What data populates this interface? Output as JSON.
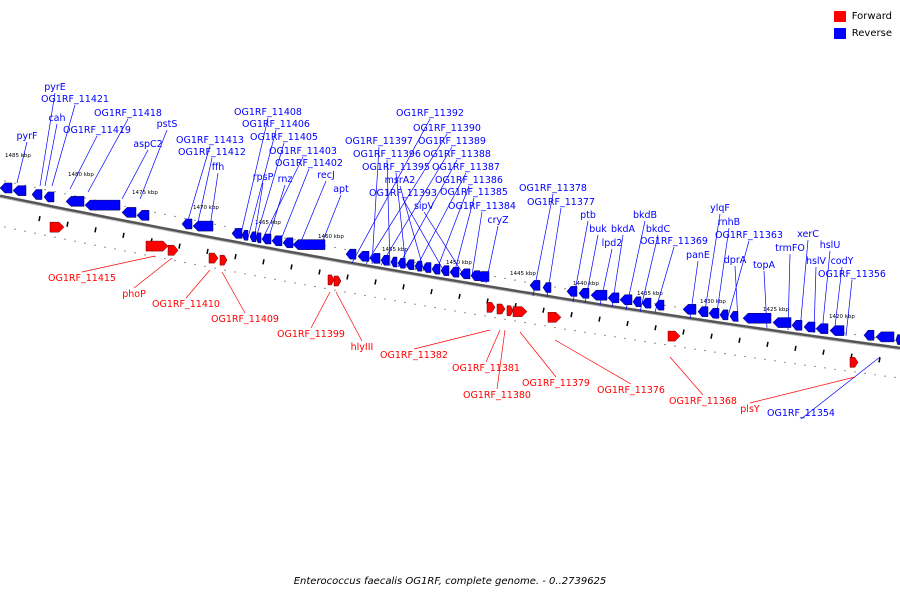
{
  "legend": [
    {
      "label": "Forward",
      "color": "#ff0000"
    },
    {
      "label": "Reverse",
      "color": "#0000ff"
    }
  ],
  "caption": "Enterococcus faecalis OG1RF, complete genome. - 0..2739625",
  "colors": {
    "forward": "#ff0000",
    "reverse": "#0000ff",
    "backbone": "#777777"
  },
  "ticks": [
    "1485 kbp",
    "1480 kbp",
    "1475 kbp",
    "1470 kbp",
    "1465 kbp",
    "1460 kbp",
    "1455 kbp",
    "1450 kbp",
    "1445 kbp",
    "1440 kbp",
    "1435 kbp",
    "1430 kbp",
    "1425 kbp",
    "1420 kbp"
  ],
  "reverse_labels": [
    "pyrE",
    "OG1RF_11421",
    "cah",
    "pyrF",
    "OG1RF_11418",
    "OG1RF_11419",
    "aspC2",
    "pstS",
    "OG1RF_11413",
    "OG1RF_11412",
    "ffh",
    "OG1RF_11408",
    "OG1RF_11406",
    "OG1RF_11405",
    "OG1RF_11403",
    "rpsP",
    "rnz",
    "OG1RF_11402",
    "recJ",
    "apt",
    "OG1RF_11392",
    "OG1RF_11390",
    "OG1RF_11397",
    "OG1RF_11389",
    "OG1RF_11396",
    "OG1RF_11388",
    "OG1RF_11395",
    "OG1RF_11387",
    "msrA2",
    "OG1RF_11386",
    "OG1RF_11393",
    "OG1RF_11385",
    "sipV",
    "OG1RF_11384",
    "cryZ",
    "OG1RF_11378",
    "OG1RF_11377",
    "ptb",
    "bkdB",
    "buk",
    "bkdA",
    "bkdC",
    "lpd2",
    "OG1RF_11369",
    "ylqF",
    "rnhB",
    "OG1RF_11363",
    "panE",
    "dprA",
    "xerC",
    "topA",
    "trmFO",
    "hslU",
    "hslV",
    "codY",
    "OG1RF_11356",
    "OG1RF_11354"
  ],
  "forward_labels": [
    "OG1RF_11415",
    "phoP",
    "OG1RF_11410",
    "OG1RF_11409",
    "OG1RF_11399",
    "hlyIII",
    "OG1RF_11382",
    "OG1RF_11381",
    "OG1RF_11380",
    "OG1RF_11379",
    "OG1RF_11376",
    "OG1RF_11368",
    "plsY"
  ]
}
